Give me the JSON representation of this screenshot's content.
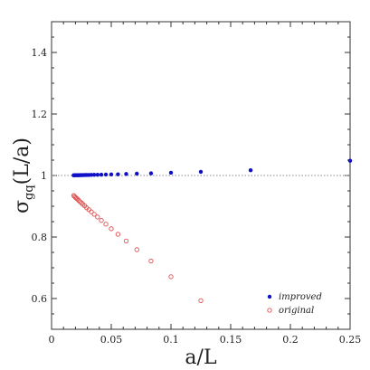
{
  "chart_data": {
    "type": "scatter",
    "title": "",
    "xlabel": "a/L",
    "ylabel_main": "σ",
    "ylabel_sub": "gq",
    "ylabel_arg": "(L/a)",
    "xlim": [
      0,
      0.25
    ],
    "ylim": [
      0.5,
      1.5
    ],
    "xticks": [
      0,
      0.05,
      0.1,
      0.15,
      0.2,
      0.25
    ],
    "xtick_labels": [
      "0",
      "0.05",
      "0.1",
      "0.15",
      "0.2",
      "0.25"
    ],
    "yticks": [
      0.6,
      0.8,
      1.0,
      1.2,
      1.4
    ],
    "ytick_labels": [
      "0.6",
      "0.8",
      "1",
      "1.2",
      "1.4"
    ],
    "grid": false,
    "reference_line_y": 1.0,
    "legend_position": "bottom-right",
    "series": [
      {
        "name": "improved",
        "color": "#1010c8",
        "marker": "filled-circle",
        "x": [
          0.25,
          0.1667,
          0.125,
          0.1,
          0.0833,
          0.0714,
          0.0625,
          0.0556,
          0.05,
          0.0455,
          0.0417,
          0.0385,
          0.0357,
          0.0333,
          0.03125,
          0.0294,
          0.0278,
          0.0263,
          0.025,
          0.0238,
          0.0227,
          0.0217,
          0.0208,
          0.02,
          0.0192,
          0.0185
        ],
        "y": [
          1.048,
          1.017,
          1.012,
          1.009,
          1.007,
          1.006,
          1.005,
          1.004,
          1.0035,
          1.003,
          1.0028,
          1.0025,
          1.0022,
          1.002,
          1.0018,
          1.0016,
          1.0015,
          1.0014,
          1.0012,
          1.0011,
          1.001,
          1.001,
          1.0009,
          1.0008,
          1.0008,
          1.0007
        ]
      },
      {
        "name": "original",
        "color": "#e05050",
        "marker": "open-circle",
        "x": [
          0.125,
          0.1,
          0.0833,
          0.0714,
          0.0625,
          0.0556,
          0.05,
          0.0455,
          0.0417,
          0.0385,
          0.0357,
          0.0333,
          0.03125,
          0.0294,
          0.0278,
          0.0263,
          0.025,
          0.0238,
          0.0227,
          0.0217,
          0.0208,
          0.02,
          0.0192,
          0.0185
        ],
        "y": [
          0.593,
          0.671,
          0.722,
          0.759,
          0.787,
          0.809,
          0.827,
          0.842,
          0.854,
          0.865,
          0.874,
          0.882,
          0.889,
          0.895,
          0.901,
          0.906,
          0.911,
          0.915,
          0.919,
          0.923,
          0.926,
          0.929,
          0.932,
          0.935
        ]
      }
    ]
  }
}
